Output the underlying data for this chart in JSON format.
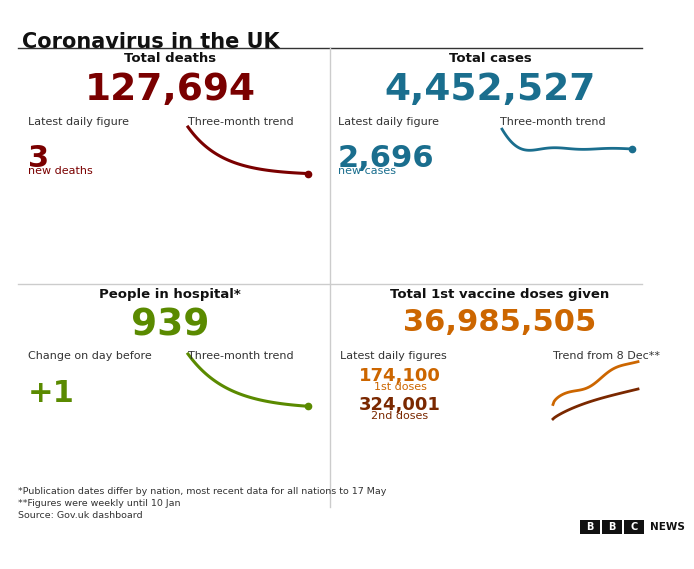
{
  "title": "Coronavirus in the UK",
  "bg_color": "#ffffff",
  "title_color": "#111111",
  "top_left": {
    "section_title": "Total deaths",
    "big_number": "127,694",
    "big_number_color": "#7a0000",
    "label1": "Latest daily figure",
    "label2": "Three-month trend",
    "small_number": "3",
    "small_number_color": "#7a0000",
    "small_label": "new deaths",
    "small_label_color": "#7a0000",
    "trend_color": "#7a0000"
  },
  "top_right": {
    "section_title": "Total cases",
    "big_number": "4,452,527",
    "big_number_color": "#1a6e8e",
    "label1": "Latest daily figure",
    "label2": "Three-month trend",
    "small_number": "2,696",
    "small_number_color": "#1a6e8e",
    "small_label": "new cases",
    "small_label_color": "#1a6e8e",
    "trend_color": "#1a6e8e"
  },
  "bottom_left": {
    "section_title": "People in hospital*",
    "big_number": "939",
    "big_number_color": "#5a8a00",
    "label1": "Change on day before",
    "label2": "Three-month trend",
    "small_number": "+1",
    "small_number_color": "#5a8a00",
    "trend_color": "#5a8a00"
  },
  "bottom_right": {
    "section_title": "Total 1st vaccine doses given",
    "big_number": "36,985,505",
    "big_number_color": "#cc6600",
    "label1": "Latest daily figures",
    "label2": "Trend from 8 Dec**",
    "dose1_number": "174,100",
    "dose1_label": "1st doses",
    "dose1_color": "#cc6600",
    "dose2_number": "324,001",
    "dose2_label": "2nd doses",
    "dose2_color": "#7a2800"
  },
  "footnotes": [
    "*Publication dates differ by nation, most recent data for all nations to 17 May",
    "**Figures were weekly until 10 Jan",
    "Source: Gov.uk dashboard"
  ],
  "bbc_color": "#bb1919"
}
